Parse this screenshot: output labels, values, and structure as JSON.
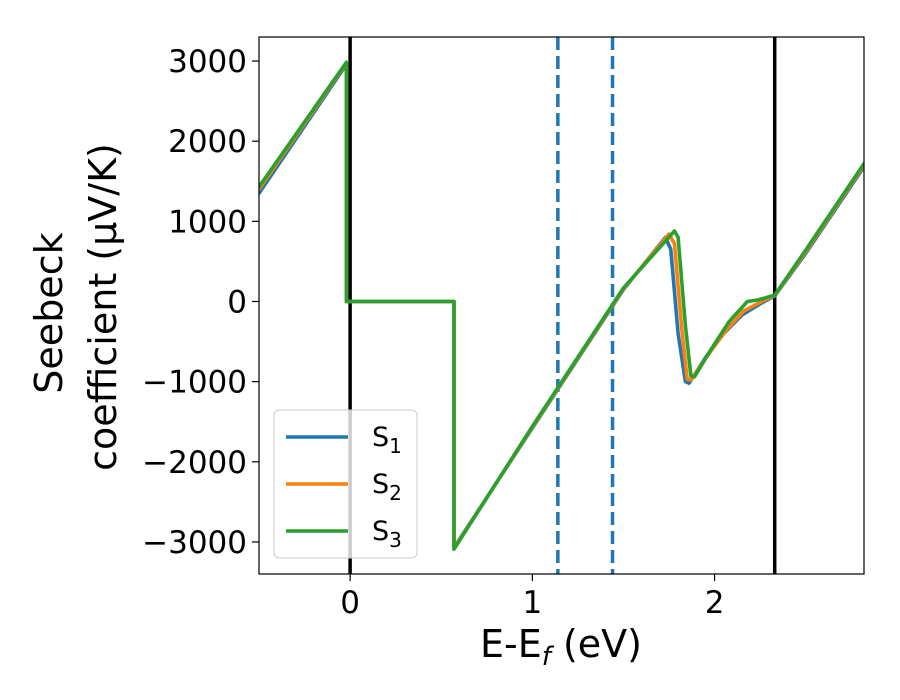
{
  "chart_data": {
    "type": "line",
    "xlabel": "E-E",
    "xlabel_sub": "f",
    "xlabel_unit": " (eV)",
    "ylabel_line1": "Seebeck",
    "ylabel_line2": "coefficient  (μV/K)",
    "xlim": [
      -0.5,
      2.82
    ],
    "ylim": [
      -3400,
      3300
    ],
    "x_ticks": [
      0,
      1,
      2
    ],
    "x_tick_labels": [
      "0",
      "1",
      "2"
    ],
    "y_ticks": [
      3000,
      2000,
      1000,
      0,
      -1000,
      -2000,
      -3000
    ],
    "y_tick_labels": [
      "3000",
      "2000",
      "1000",
      "0",
      "−1000",
      "−2000",
      "−3000"
    ],
    "grid": false,
    "legend_position": "lower-left",
    "vertical_lines": [
      {
        "x": 0.0,
        "style": "solid",
        "color": "#000000"
      },
      {
        "x": 2.33,
        "style": "solid",
        "color": "#000000"
      },
      {
        "x": 1.14,
        "style": "dashed",
        "color": "#1f77b4"
      },
      {
        "x": 1.44,
        "style": "dashed",
        "color": "#1f77b4"
      }
    ],
    "series": [
      {
        "name": "S",
        "name_sub": "1",
        "color": "#1f77b4",
        "points": [
          [
            -0.5,
            1350
          ],
          [
            -0.02,
            2960
          ],
          [
            -0.02,
            0
          ],
          [
            0.57,
            0
          ],
          [
            0.57,
            -3070
          ],
          [
            1.0,
            -1580
          ],
          [
            1.5,
            150
          ],
          [
            1.73,
            800
          ],
          [
            1.76,
            650
          ],
          [
            1.8,
            -400
          ],
          [
            1.84,
            -1000
          ],
          [
            1.86,
            -1020
          ],
          [
            1.95,
            -700
          ],
          [
            2.05,
            -400
          ],
          [
            2.15,
            -170
          ],
          [
            2.25,
            -30
          ],
          [
            2.33,
            70
          ],
          [
            2.5,
            600
          ],
          [
            2.82,
            1680
          ]
        ]
      },
      {
        "name": "S",
        "name_sub": "2",
        "color": "#ff7f0e",
        "points": [
          [
            -0.5,
            1400
          ],
          [
            -0.02,
            2975
          ],
          [
            -0.02,
            0
          ],
          [
            0.57,
            0
          ],
          [
            0.57,
            -3080
          ],
          [
            1.0,
            -1570
          ],
          [
            1.5,
            160
          ],
          [
            1.75,
            840
          ],
          [
            1.78,
            720
          ],
          [
            1.82,
            -350
          ],
          [
            1.85,
            -970
          ],
          [
            1.87,
            -980
          ],
          [
            1.96,
            -680
          ],
          [
            2.06,
            -370
          ],
          [
            2.16,
            -120
          ],
          [
            2.25,
            -10
          ],
          [
            2.33,
            75
          ],
          [
            2.5,
            620
          ],
          [
            2.82,
            1700
          ]
        ]
      },
      {
        "name": "S",
        "name_sub": "3",
        "color": "#2ca02c",
        "points": [
          [
            -0.5,
            1430
          ],
          [
            -0.02,
            2985
          ],
          [
            -0.02,
            0
          ],
          [
            0.57,
            0
          ],
          [
            0.57,
            -3090
          ],
          [
            1.0,
            -1560
          ],
          [
            1.5,
            170
          ],
          [
            1.78,
            880
          ],
          [
            1.8,
            800
          ],
          [
            1.84,
            -300
          ],
          [
            1.87,
            -930
          ],
          [
            1.89,
            -940
          ],
          [
            1.98,
            -600
          ],
          [
            2.08,
            -250
          ],
          [
            2.18,
            0
          ],
          [
            2.24,
            20
          ],
          [
            2.33,
            80
          ],
          [
            2.5,
            640
          ],
          [
            2.82,
            1720
          ]
        ]
      }
    ]
  }
}
